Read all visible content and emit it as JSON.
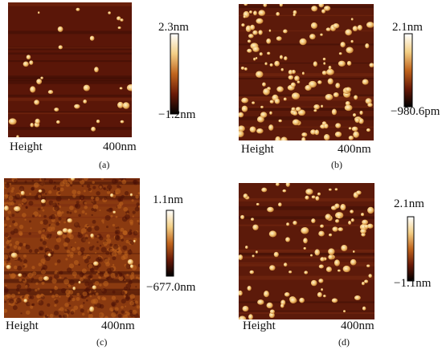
{
  "panels": [
    {
      "caption": "(a)",
      "scale_max": "2.3nm",
      "scale_min": "−1.2nm",
      "axis_label": "Height",
      "scale_bar": "400nm"
    },
    {
      "caption": "(b)",
      "scale_max": "2.1nm",
      "scale_min": "−980.6pm",
      "axis_label": "Height",
      "scale_bar": "400nm"
    },
    {
      "caption": "(c)",
      "scale_max": "1.1nm",
      "scale_min": "−677.0nm",
      "axis_label": "Height",
      "scale_bar": "400nm"
    },
    {
      "caption": "(d)",
      "scale_max": "2.1nm",
      "scale_min": "−1.1nm",
      "axis_label": "Height",
      "scale_bar": "400nm"
    }
  ]
}
